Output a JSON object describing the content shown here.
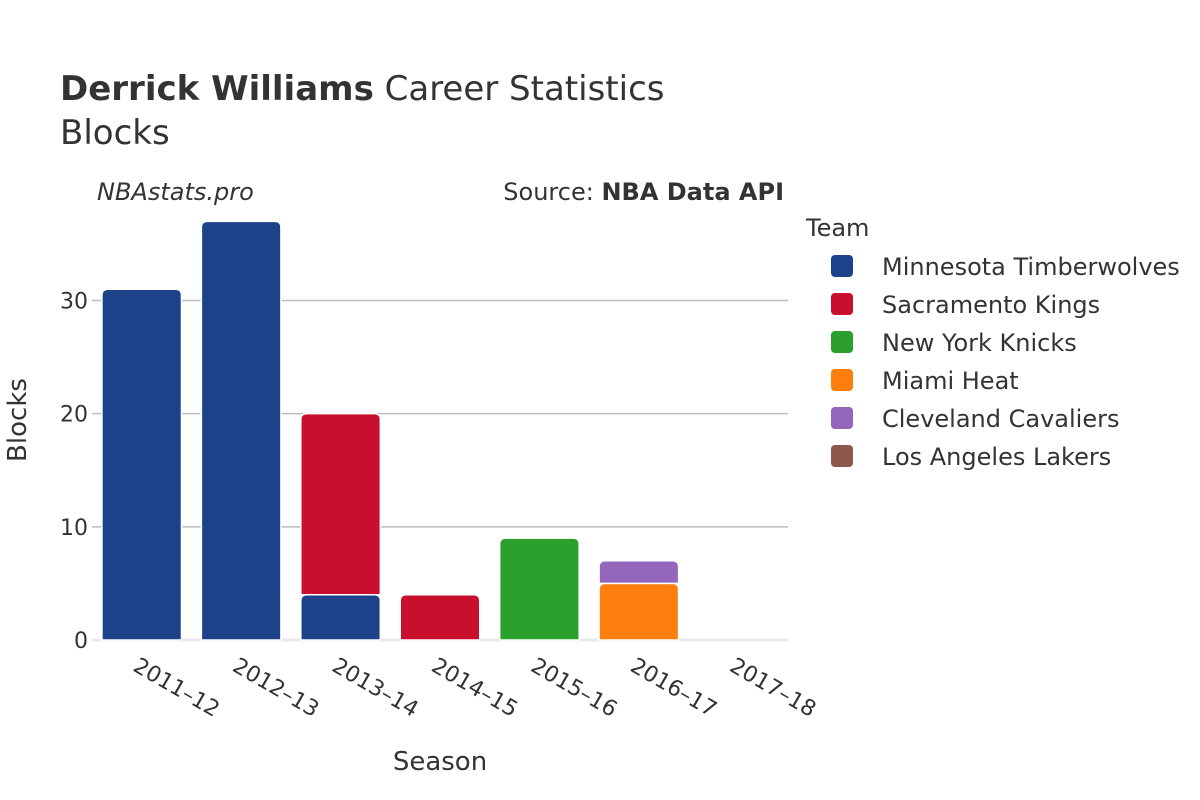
{
  "header": {
    "title_bold": "Derrick Williams",
    "title_rest": " Career Statistics",
    "subtitle": "Blocks",
    "watermark": "NBAstats.pro",
    "source_prefix": "Source: ",
    "source_bold": "NBA Data API"
  },
  "chart_data": {
    "type": "bar",
    "stacked": true,
    "xlabel": "Season",
    "ylabel": "Blocks",
    "ylim": [
      0,
      38
    ],
    "yticks": [
      0,
      10,
      20,
      30
    ],
    "grid": true,
    "legend_title": "Team",
    "legend_position": "right",
    "categories": [
      "2011–12",
      "2012–13",
      "2013–14",
      "2014–15",
      "2015–16",
      "2016–17",
      "2017–18"
    ],
    "series": [
      {
        "name": "Minnesota Timberwolves",
        "color": "#1d428a",
        "values": [
          31,
          37,
          4,
          0,
          0,
          0,
          0
        ]
      },
      {
        "name": "Sacramento Kings",
        "color": "#c8102e",
        "values": [
          0,
          0,
          16,
          4,
          0,
          0,
          0
        ]
      },
      {
        "name": "New York Knicks",
        "color": "#2ca02c",
        "values": [
          0,
          0,
          0,
          0,
          9,
          0,
          0
        ]
      },
      {
        "name": "Miami Heat",
        "color": "#ff7f0e",
        "values": [
          0,
          0,
          0,
          0,
          0,
          5,
          0
        ]
      },
      {
        "name": "Cleveland Cavaliers",
        "color": "#9467bd",
        "values": [
          0,
          0,
          0,
          0,
          0,
          2,
          0
        ]
      },
      {
        "name": "Los Angeles Lakers",
        "color": "#8c564b",
        "values": [
          0,
          0,
          0,
          0,
          0,
          0,
          0
        ]
      }
    ]
  }
}
